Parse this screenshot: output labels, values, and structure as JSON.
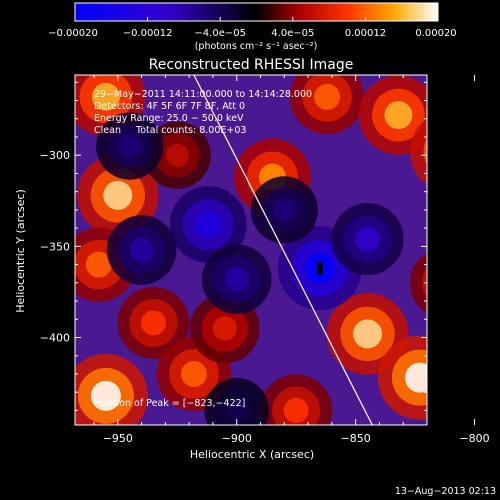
{
  "chart_data": {
    "type": "heatmap",
    "title": "Reconstructed RHESSI Image",
    "xlabel": "Heliocentric X (arcsec)",
    "ylabel": "Heliocentric Y (arcsec)",
    "xlim": [
      -968,
      -820
    ],
    "ylim": [
      -448,
      -256
    ],
    "x_ticks": [
      -950,
      -900,
      -850,
      -800
    ],
    "y_ticks": [
      -300,
      -350,
      -400
    ],
    "x_tick_labels": [
      "−950",
      "−900",
      "−850",
      "−800"
    ],
    "y_tick_labels": [
      "−300",
      "−350",
      "−400"
    ],
    "colorbar": {
      "range": [
        -0.0002,
        0.0002
      ],
      "ticks": [
        -0.0002,
        -0.00012,
        -4e-05,
        4e-05,
        0.00012,
        0.0002
      ],
      "tick_labels": [
        "−0.00020",
        "−0.00012",
        "−4.0e−05",
        "4.0e−05",
        "0.00012",
        "0.00020"
      ],
      "unit_label": "(photons cm⁻² s⁻¹ asec⁻²)"
    },
    "annotations": [
      "29−May−2011 14:11:00.000 to 14:14:28.000",
      "Detectors: 4F 5F 6F 7F 8F, Att 0",
      "Energy Range: 25.0 − 50.0 keV",
      "Clean     Total counts: 8.00E+03"
    ],
    "peak_label": "Position of Peak = [−823,−422]",
    "peak": [
      -823,
      -422
    ],
    "limb_line": [
      [
        -918,
        -256
      ],
      [
        -843,
        -448
      ]
    ],
    "blobs": [
      {
        "x": -955,
        "y": -268,
        "v": 0.00016
      },
      {
        "x": -950,
        "y": -322,
        "v": 0.00018
      },
      {
        "x": -958,
        "y": -360,
        "v": 0.00012
      },
      {
        "x": -935,
        "y": -392,
        "v": 0.0001
      },
      {
        "x": -955,
        "y": -432,
        "v": 0.0002
      },
      {
        "x": -918,
        "y": -420,
        "v": 0.00012
      },
      {
        "x": -905,
        "y": -395,
        "v": 8e-05
      },
      {
        "x": -925,
        "y": -300,
        "v": 6e-05
      },
      {
        "x": -885,
        "y": -312,
        "v": 0.00014
      },
      {
        "x": -862,
        "y": -268,
        "v": 0.00012
      },
      {
        "x": -832,
        "y": -278,
        "v": 0.00016
      },
      {
        "x": -810,
        "y": -298,
        "v": 0.00018
      },
      {
        "x": -800,
        "y": -338,
        "v": 0.00014
      },
      {
        "x": -812,
        "y": -370,
        "v": 0.0001
      },
      {
        "x": -845,
        "y": -398,
        "v": 0.00018
      },
      {
        "x": -823,
        "y": -422,
        "v": 0.0002
      },
      {
        "x": -795,
        "y": -420,
        "v": 0.00014
      },
      {
        "x": -875,
        "y": -440,
        "v": 0.0001
      },
      {
        "x": -865,
        "y": -362,
        "v": -0.0002
      },
      {
        "x": -845,
        "y": -346,
        "v": -0.0001
      },
      {
        "x": -912,
        "y": -338,
        "v": -0.00014
      },
      {
        "x": -940,
        "y": -352,
        "v": -8e-05
      },
      {
        "x": -900,
        "y": -368,
        "v": -8e-05
      },
      {
        "x": -880,
        "y": -330,
        "v": -6e-05
      },
      {
        "x": -945,
        "y": -295,
        "v": -6e-05
      },
      {
        "x": -900,
        "y": -440,
        "v": -4e-05
      }
    ]
  },
  "footer": {
    "timestamp": "13−Aug−2013 02:13"
  }
}
